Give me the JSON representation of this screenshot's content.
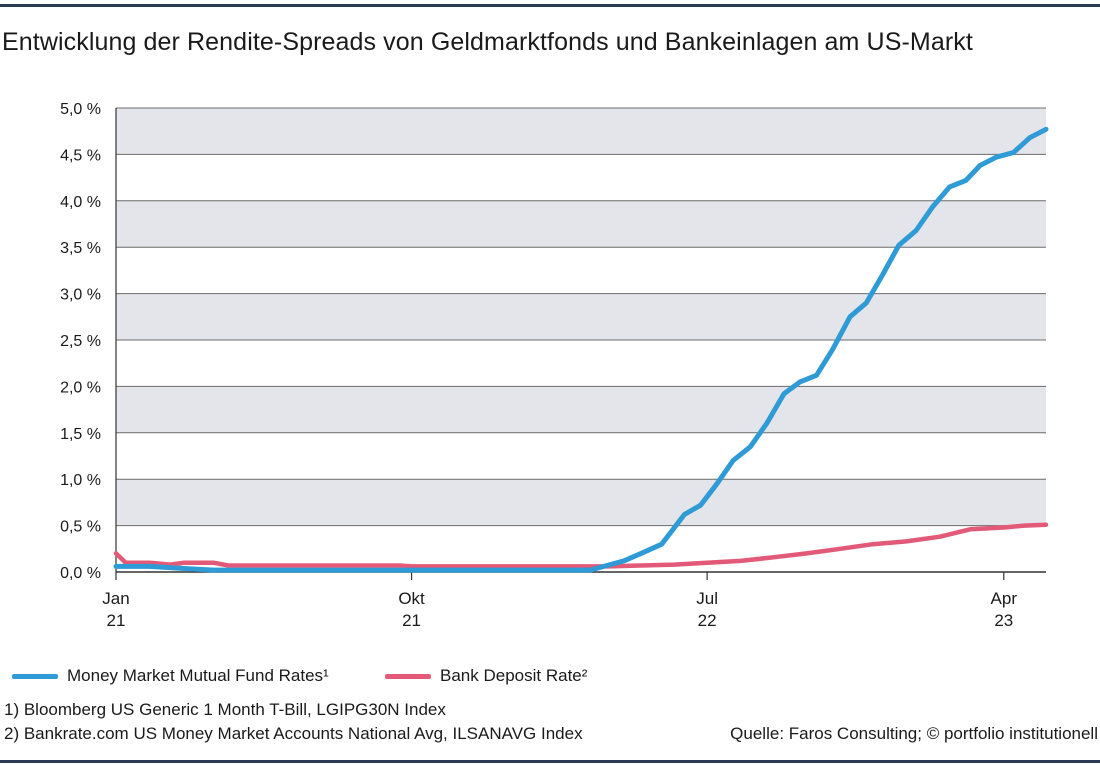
{
  "title": "Entwicklung der Rendite-Spreads von Geldmarktfonds und Bankeinlagen am US-Markt",
  "chart_data": {
    "type": "line",
    "title": "Entwicklung der Rendite-Spreads von Geldmarktfonds und Bankeinlagen am US-Markt",
    "ylim": [
      0,
      5.0
    ],
    "yticks": [
      "0,0 %",
      "0,5 %",
      "1,0 %",
      "1,5 %",
      "2,0 %",
      "2,5 %",
      "3,0 %",
      "3,5 %",
      "4,0 %",
      "4,5 %",
      "5,0 %"
    ],
    "xlim": [
      "2021-01-01",
      "2023-05-10"
    ],
    "xticks": [
      {
        "date": "2021-01-01",
        "line1": "Jan",
        "line2": "21"
      },
      {
        "date": "2021-10-01",
        "line1": "Okt",
        "line2": "21"
      },
      {
        "date": "2022-07-01",
        "line1": "Jul",
        "line2": "22"
      },
      {
        "date": "2023-04-01",
        "line1": "Apr",
        "line2": "23"
      }
    ],
    "grid": true,
    "legend_position": "bottom-left",
    "series": [
      {
        "name": "Money Market Mutual Fund Rates¹",
        "color": "#2f9bd6",
        "points": [
          [
            "2021-01-01",
            0.06
          ],
          [
            "2021-02-01",
            0.06
          ],
          [
            "2021-03-01",
            0.04
          ],
          [
            "2021-04-01",
            0.02
          ],
          [
            "2021-06-01",
            0.02
          ],
          [
            "2021-08-01",
            0.02
          ],
          [
            "2021-10-01",
            0.02
          ],
          [
            "2021-12-01",
            0.02
          ],
          [
            "2022-02-01",
            0.02
          ],
          [
            "2022-03-15",
            0.02
          ],
          [
            "2022-04-15",
            0.12
          ],
          [
            "2022-05-01",
            0.2
          ],
          [
            "2022-05-20",
            0.3
          ],
          [
            "2022-06-10",
            0.62
          ],
          [
            "2022-06-25",
            0.72
          ],
          [
            "2022-07-10",
            0.95
          ],
          [
            "2022-07-25",
            1.2
          ],
          [
            "2022-08-10",
            1.35
          ],
          [
            "2022-08-25",
            1.6
          ],
          [
            "2022-09-10",
            1.92
          ],
          [
            "2022-09-25",
            2.05
          ],
          [
            "2022-10-10",
            2.12
          ],
          [
            "2022-10-25",
            2.4
          ],
          [
            "2022-11-10",
            2.75
          ],
          [
            "2022-11-25",
            2.9
          ],
          [
            "2022-12-10",
            3.2
          ],
          [
            "2022-12-25",
            3.52
          ],
          [
            "2023-01-10",
            3.68
          ],
          [
            "2023-01-25",
            3.93
          ],
          [
            "2023-02-10",
            4.15
          ],
          [
            "2023-02-25",
            4.22
          ],
          [
            "2023-03-10",
            4.38
          ],
          [
            "2023-03-25",
            4.47
          ],
          [
            "2023-04-10",
            4.52
          ],
          [
            "2023-04-25",
            4.68
          ],
          [
            "2023-05-10",
            4.77
          ]
        ]
      },
      {
        "name": "Bank Deposit Rate²",
        "color": "#e35a78",
        "points": [
          [
            "2021-01-01",
            0.2
          ],
          [
            "2021-01-10",
            0.1
          ],
          [
            "2021-02-01",
            0.1
          ],
          [
            "2021-02-20",
            0.08
          ],
          [
            "2021-03-05",
            0.1
          ],
          [
            "2021-04-01",
            0.1
          ],
          [
            "2021-04-15",
            0.07
          ],
          [
            "2021-06-01",
            0.07
          ],
          [
            "2021-08-01",
            0.07
          ],
          [
            "2021-09-20",
            0.07
          ],
          [
            "2021-10-01",
            0.06
          ],
          [
            "2022-01-01",
            0.06
          ],
          [
            "2022-04-01",
            0.06
          ],
          [
            "2022-05-01",
            0.07
          ],
          [
            "2022-06-01",
            0.08
          ],
          [
            "2022-07-01",
            0.1
          ],
          [
            "2022-08-01",
            0.12
          ],
          [
            "2022-09-01",
            0.16
          ],
          [
            "2022-10-01",
            0.2
          ],
          [
            "2022-11-01",
            0.25
          ],
          [
            "2022-12-01",
            0.3
          ],
          [
            "2023-01-01",
            0.33
          ],
          [
            "2023-02-01",
            0.38
          ],
          [
            "2023-03-01",
            0.46
          ],
          [
            "2023-04-01",
            0.48
          ],
          [
            "2023-04-20",
            0.5
          ],
          [
            "2023-05-10",
            0.51
          ]
        ]
      }
    ]
  },
  "footnotes": {
    "note1": "1) Bloomberg US Generic 1 Month T-Bill, LGIPG30N Index",
    "note2": "2) Bankrate.com US Money Market Accounts National Avg, ILSANAVG Index",
    "source": "Quelle: Faros Consulting; © portfolio institutionell"
  }
}
